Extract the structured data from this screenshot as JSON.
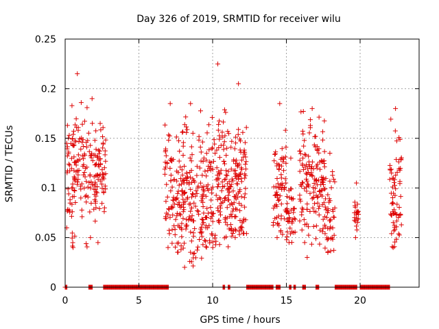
{
  "chart_data": {
    "type": "scatter",
    "title": "Day 326 of 2019, SRMTID for receiver wilu",
    "xlabel": "GPS time / hours",
    "ylabel": "SRMTID / TECUs",
    "xlim": [
      0,
      24
    ],
    "ylim": [
      0,
      0.25
    ],
    "x_ticks": [
      0,
      5,
      10,
      15,
      20
    ],
    "y_ticks": [
      0,
      0.05,
      0.1,
      0.15,
      0.2,
      0.25
    ],
    "x_tick_labels": [
      "0",
      "5",
      "10",
      "15",
      "20"
    ],
    "y_tick_labels": [
      "0",
      "0.05",
      "0.1",
      "0.15",
      "0.2",
      "0.25"
    ],
    "grid": true,
    "marker": "+",
    "color": "#dd0000",
    "series": [
      {
        "name": "SRMTID",
        "clusters": [
          {
            "x_start": 0.1,
            "x_end": 1.55,
            "y_min": 0.04,
            "y_max": 0.215,
            "mean": 0.12,
            "count": 120
          },
          {
            "x_start": 1.55,
            "x_end": 2.1,
            "y_min": 0.05,
            "y_max": 0.19,
            "mean": 0.11,
            "count": 30
          },
          {
            "x_start": 2.0,
            "x_end": 2.75,
            "y_min": 0.045,
            "y_max": 0.165,
            "mean": 0.12,
            "count": 60
          },
          {
            "x_start": 6.75,
            "x_end": 7.5,
            "y_min": 0.04,
            "y_max": 0.185,
            "mean": 0.095,
            "count": 55
          },
          {
            "x_start": 7.5,
            "x_end": 9.5,
            "y_min": 0.02,
            "y_max": 0.185,
            "mean": 0.09,
            "count": 180
          },
          {
            "x_start": 9.5,
            "x_end": 11.2,
            "y_min": 0.04,
            "y_max": 0.225,
            "mean": 0.1,
            "count": 150
          },
          {
            "x_start": 11.2,
            "x_end": 12.3,
            "y_min": 0.05,
            "y_max": 0.205,
            "mean": 0.1,
            "count": 110
          },
          {
            "x_start": 14.1,
            "x_end": 15.0,
            "y_min": 0.05,
            "y_max": 0.185,
            "mean": 0.1,
            "count": 70
          },
          {
            "x_start": 15.0,
            "x_end": 15.6,
            "y_min": 0.045,
            "y_max": 0.13,
            "mean": 0.075,
            "count": 40
          },
          {
            "x_start": 15.9,
            "x_end": 17.6,
            "y_min": 0.03,
            "y_max": 0.18,
            "mean": 0.11,
            "count": 150
          },
          {
            "x_start": 17.6,
            "x_end": 18.3,
            "y_min": 0.035,
            "y_max": 0.135,
            "mean": 0.075,
            "count": 45
          },
          {
            "x_start": 19.6,
            "x_end": 19.9,
            "y_min": 0.05,
            "y_max": 0.105,
            "mean": 0.075,
            "count": 20
          },
          {
            "x_start": 22.0,
            "x_end": 22.8,
            "y_min": 0.04,
            "y_max": 0.18,
            "mean": 0.095,
            "count": 70
          }
        ],
        "zero_segments": [
          [
            0.0,
            0.15
          ],
          [
            1.6,
            1.85
          ],
          [
            2.6,
            7.0
          ],
          [
            10.7,
            10.85
          ],
          [
            11.05,
            11.2
          ],
          [
            12.3,
            14.1
          ],
          [
            14.3,
            14.6
          ],
          [
            15.2,
            15.35
          ],
          [
            15.5,
            15.65
          ],
          [
            16.1,
            16.3
          ],
          [
            17.0,
            17.2
          ],
          [
            18.3,
            19.8
          ],
          [
            20.0,
            22.0
          ]
        ]
      }
    ]
  }
}
